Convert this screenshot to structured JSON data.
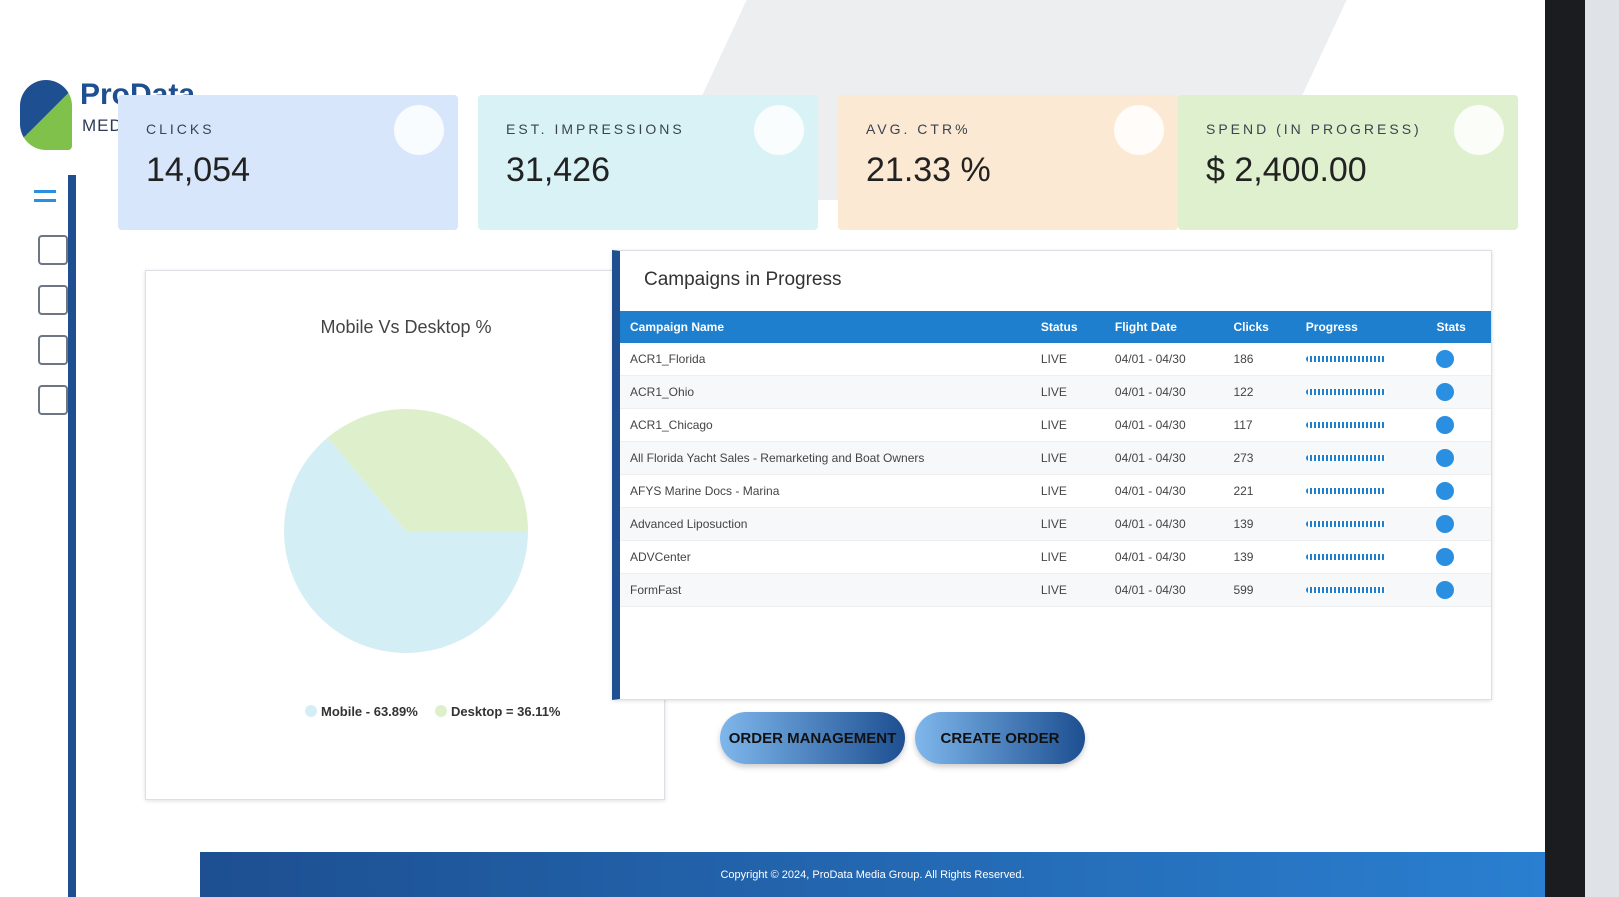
{
  "logo": {
    "name": "ProData",
    "tagline": "MEDIA GROUP"
  },
  "cards": [
    {
      "label": "CLICKS",
      "value": "14,054"
    },
    {
      "label": "EST. IMPRESSIONS",
      "value": "31,426"
    },
    {
      "label": "AVG. CTR%",
      "value": "21.33 %"
    },
    {
      "label": "SPEND (IN PROGRESS)",
      "value": "$ 2,400.00"
    }
  ],
  "pie": {
    "type": "pie",
    "title": "Mobile Vs Desktop %",
    "values": [
      63.89,
      36.11
    ],
    "legend": [
      "Mobile - 63.89%",
      "Desktop = 36.11%"
    ],
    "colors": [
      "#d4eef5",
      "#def0cb"
    ]
  },
  "table": {
    "title": "Campaigns in Progress",
    "columns": [
      "Campaign Name",
      "Status",
      "Flight Date",
      "Clicks",
      "Progress",
      "Stats"
    ],
    "rows": [
      [
        "ACR1_Florida",
        "LIVE",
        "04/01 - 04/30",
        186
      ],
      [
        "ACR1_Ohio",
        "LIVE",
        "04/01 - 04/30",
        122
      ],
      [
        "ACR1_Chicago",
        "LIVE",
        "04/01 - 04/30",
        117
      ],
      [
        "All Florida Yacht Sales - Remarketing and Boat Owners",
        "LIVE",
        "04/01 - 04/30",
        273
      ],
      [
        "AFYS Marine Docs - Marina",
        "LIVE",
        "04/01 - 04/30",
        221
      ],
      [
        "Advanced Liposuction",
        "LIVE",
        "04/01 - 04/30",
        139
      ],
      [
        "ADVCenter",
        "LIVE",
        "04/01 - 04/30",
        139
      ],
      [
        "FormFast",
        "LIVE",
        "04/01 - 04/30",
        599
      ]
    ]
  },
  "buttons": [
    "ORDER MANAGEMENT",
    "CREATE ORDER"
  ],
  "footer": "Copyright © 2024, ProData Media Group. All Rights Reserved."
}
